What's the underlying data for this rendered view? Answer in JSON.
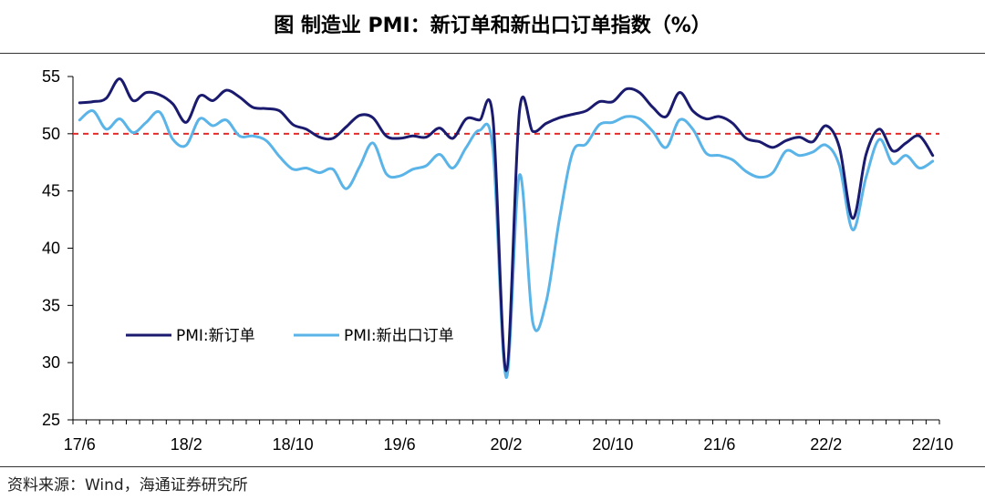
{
  "title": "图  制造业 PMI：新订单和新出口订单指数（%）",
  "source": "资料来源：Wind，海通证券研究所",
  "colors": {
    "new_orders": "#1a1a6e",
    "new_export_orders": "#5ab4e8",
    "reference": "#e32d2d"
  },
  "chart_data": {
    "type": "line",
    "title": "制造业 PMI：新订单和新出口订单指数（%）",
    "xlabel": "",
    "ylabel": "%",
    "ylim": [
      25,
      55
    ],
    "yticks": [
      25,
      30,
      35,
      40,
      45,
      50,
      55
    ],
    "xticks": [
      "17/6",
      "18/2",
      "18/10",
      "19/6",
      "20/2",
      "20/10",
      "21/6",
      "22/2",
      "22/10"
    ],
    "reference_line": {
      "value": 50,
      "style": "dashed"
    },
    "legend": [
      "PMI:新订单",
      "PMI:新出口订单"
    ],
    "x": [
      "17/6",
      "17/7",
      "17/8",
      "17/9",
      "17/10",
      "17/11",
      "17/12",
      "18/1",
      "18/2",
      "18/3",
      "18/4",
      "18/5",
      "18/6",
      "18/7",
      "18/8",
      "18/9",
      "18/10",
      "18/11",
      "18/12",
      "19/1",
      "19/2",
      "19/3",
      "19/4",
      "19/5",
      "19/6",
      "19/7",
      "19/8",
      "19/9",
      "19/10",
      "19/11",
      "19/12",
      "20/1",
      "20/2",
      "20/3",
      "20/4",
      "20/5",
      "20/6",
      "20/7",
      "20/8",
      "20/9",
      "20/10",
      "20/11",
      "20/12",
      "21/1",
      "21/2",
      "21/3",
      "21/4",
      "21/5",
      "21/6",
      "21/7",
      "21/8",
      "21/9",
      "21/10",
      "21/11",
      "21/12",
      "22/1",
      "22/2",
      "22/3",
      "22/4",
      "22/5",
      "22/6",
      "22/7",
      "22/8",
      "22/9",
      "22/10"
    ],
    "series": [
      {
        "name": "PMI:新订单",
        "values": [
          52.7,
          52.8,
          53.1,
          54.8,
          52.9,
          53.6,
          53.4,
          52.6,
          51.0,
          53.3,
          52.9,
          53.8,
          53.2,
          52.3,
          52.2,
          52.0,
          50.8,
          50.4,
          49.7,
          49.6,
          50.6,
          51.6,
          51.4,
          49.8,
          49.6,
          49.8,
          49.7,
          50.5,
          49.6,
          51.3,
          51.2,
          51.4,
          29.3,
          52.0,
          50.2,
          50.9,
          51.4,
          51.7,
          52.0,
          52.8,
          52.8,
          53.9,
          53.6,
          52.3,
          51.5,
          53.6,
          52.0,
          51.3,
          51.5,
          50.9,
          49.6,
          49.3,
          48.8,
          49.4,
          49.7,
          49.3,
          50.7,
          48.8,
          42.6,
          48.2,
          50.4,
          48.5,
          49.2,
          49.8,
          48.1
        ]
      },
      {
        "name": "PMI:新出口订单",
        "values": [
          51.2,
          52.0,
          50.4,
          51.3,
          50.1,
          51.0,
          51.9,
          49.5,
          49.0,
          51.3,
          50.7,
          51.2,
          49.8,
          49.8,
          49.4,
          48.0,
          46.9,
          47.0,
          46.6,
          46.9,
          45.2,
          47.1,
          49.2,
          46.5,
          46.3,
          46.9,
          47.2,
          48.2,
          47.0,
          48.8,
          50.3,
          48.7,
          28.7,
          46.4,
          33.5,
          35.3,
          42.6,
          48.4,
          49.1,
          50.8,
          51.0,
          51.5,
          51.3,
          50.2,
          48.8,
          51.2,
          50.4,
          48.3,
          48.1,
          47.7,
          46.7,
          46.2,
          46.6,
          48.5,
          48.1,
          48.4,
          49.0,
          47.2,
          41.6,
          46.2,
          49.5,
          47.4,
          48.1,
          47.0,
          47.6
        ]
      }
    ]
  }
}
